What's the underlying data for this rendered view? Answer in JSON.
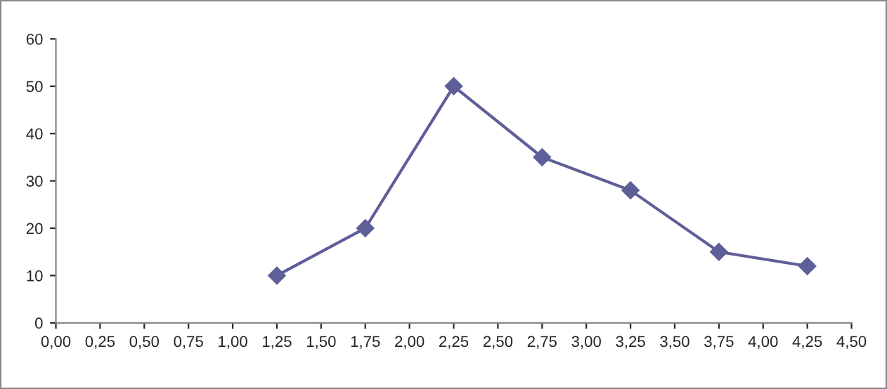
{
  "chart_data": {
    "type": "line",
    "x": [
      1.25,
      1.75,
      2.25,
      2.75,
      3.25,
      3.75,
      4.25
    ],
    "series": [
      {
        "color": "#5e5e99",
        "values": [
          10,
          20,
          50,
          35,
          28,
          15,
          12
        ]
      }
    ],
    "xlim": [
      0,
      4.5
    ],
    "xticks": [
      {
        "value": 0,
        "label": "0,00"
      },
      {
        "value": 0.25,
        "label": "0,25"
      },
      {
        "value": 0.5,
        "label": "0,50"
      },
      {
        "value": 0.75,
        "label": "0,75"
      },
      {
        "value": 1,
        "label": "1,00"
      },
      {
        "value": 1.25,
        "label": "1,25"
      },
      {
        "value": 1.5,
        "label": "1,50"
      },
      {
        "value": 1.75,
        "label": "1,75"
      },
      {
        "value": 2,
        "label": "2,00"
      },
      {
        "value": 2.25,
        "label": "2,25"
      },
      {
        "value": 2.5,
        "label": "2,50"
      },
      {
        "value": 2.75,
        "label": "2,75"
      },
      {
        "value": 3,
        "label": "3,00"
      },
      {
        "value": 3.25,
        "label": "3,25"
      },
      {
        "value": 3.5,
        "label": "3,50"
      },
      {
        "value": 3.75,
        "label": "3,75"
      },
      {
        "value": 4,
        "label": "4,00"
      },
      {
        "value": 4.25,
        "label": "4,25"
      },
      {
        "value": 4.5,
        "label": "4,50"
      }
    ],
    "ylim": [
      0,
      60
    ],
    "yticks": [
      0,
      10,
      20,
      30,
      40,
      50,
      60
    ],
    "grid": false,
    "marker": "diamond",
    "line_style": "solid"
  }
}
